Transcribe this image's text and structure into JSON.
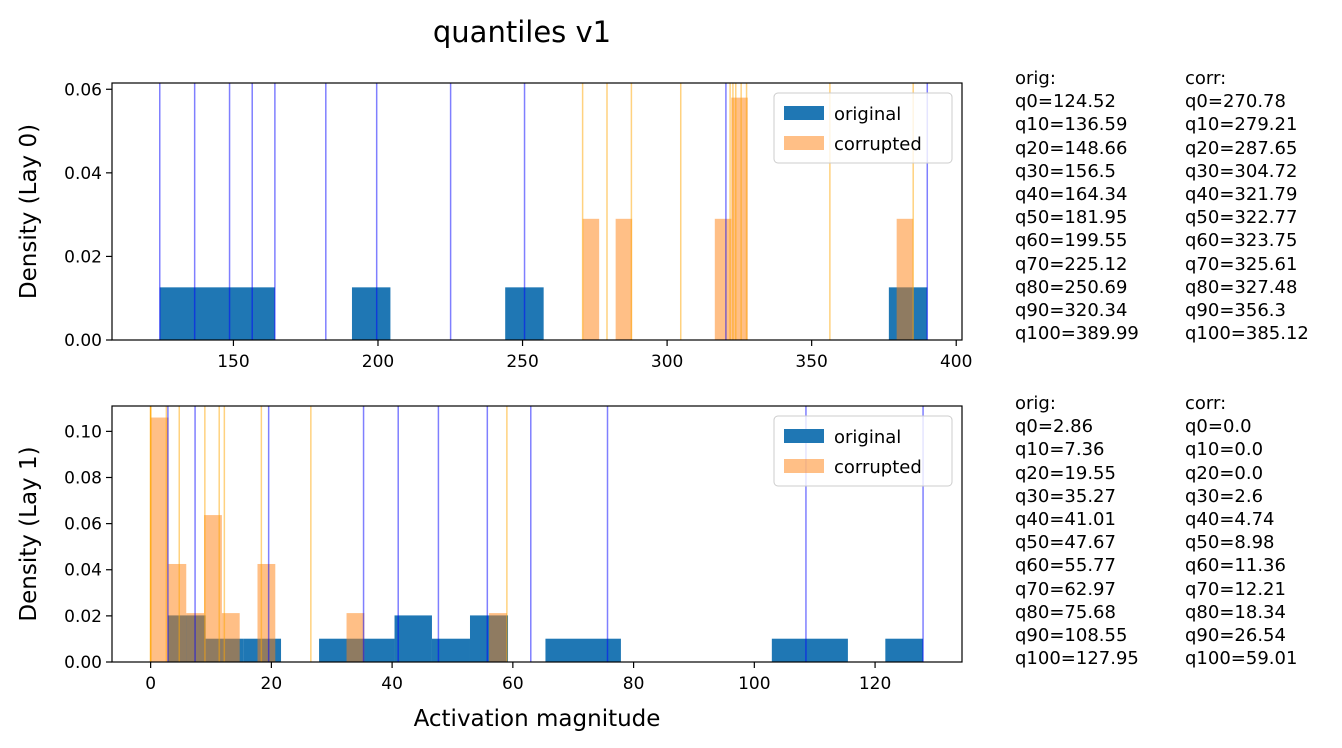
{
  "title": "quantiles v1",
  "chart_data": [
    {
      "type": "histogram",
      "ylabel": "Density (Lay 0)",
      "xlabel": "",
      "xlim": [
        108,
        402
      ],
      "ylim": [
        0,
        0.0615
      ],
      "xticks": [
        150,
        200,
        250,
        300,
        350,
        400
      ],
      "yticks": [
        0.0,
        0.02,
        0.04,
        0.06
      ],
      "ytick_decimals": 2,
      "legend": {
        "placement": "top-right",
        "entries": [
          "original",
          "corrupted"
        ]
      },
      "series": [
        {
          "name": "original",
          "color": "#1f77b4",
          "alpha": 1.0,
          "bins": [
            {
              "x0": 124.52,
              "x1": 164.34,
              "value": 0.0126
            },
            {
              "x0": 191.0,
              "x1": 204.3,
              "value": 0.0126
            },
            {
              "x0": 244.0,
              "x1": 257.3,
              "value": 0.0126
            },
            {
              "x0": 376.7,
              "x1": 389.99,
              "value": 0.0126
            }
          ],
          "quantile_lines": [
            124.52,
            136.59,
            148.66,
            156.5,
            164.34,
            181.95,
            199.55,
            225.12,
            250.69,
            320.34,
            389.99
          ]
        },
        {
          "name": "corrupted",
          "color": "#ff7f0e",
          "alpha": 0.5,
          "bins": [
            {
              "x0": 270.78,
              "x1": 276.5,
              "value": 0.029
            },
            {
              "x0": 282.2,
              "x1": 287.9,
              "value": 0.029
            },
            {
              "x0": 316.5,
              "x1": 322.2,
              "value": 0.029
            },
            {
              "x0": 322.2,
              "x1": 327.9,
              "value": 0.058
            },
            {
              "x0": 379.4,
              "x1": 385.12,
              "value": 0.029
            }
          ],
          "quantile_lines": [
            270.78,
            279.21,
            287.65,
            304.72,
            321.79,
            322.77,
            323.75,
            325.61,
            327.48,
            356.3,
            385.12
          ]
        }
      ]
    },
    {
      "type": "histogram",
      "ylabel": "Density (Lay 1)",
      "xlabel": "Activation magnitude",
      "xlim": [
        -6.4,
        134.4
      ],
      "ylim": [
        0,
        0.111
      ],
      "xticks": [
        0,
        20,
        40,
        60,
        80,
        100,
        120
      ],
      "yticks": [
        0.0,
        0.02,
        0.04,
        0.06,
        0.08,
        0.1
      ],
      "ytick_decimals": 2,
      "legend": {
        "placement": "top-right",
        "entries": [
          "original",
          "corrupted"
        ]
      },
      "series": [
        {
          "name": "original",
          "color": "#1f77b4",
          "alpha": 1.0,
          "bins": [
            {
              "x0": 2.86,
              "x1": 9.1,
              "value": 0.0202
            },
            {
              "x0": 9.1,
              "x1": 15.4,
              "value": 0.0101
            },
            {
              "x0": 15.4,
              "x1": 21.6,
              "value": 0.0101
            },
            {
              "x0": 27.9,
              "x1": 40.4,
              "value": 0.0101
            },
            {
              "x0": 40.4,
              "x1": 46.6,
              "value": 0.0202
            },
            {
              "x0": 46.6,
              "x1": 52.9,
              "value": 0.0101
            },
            {
              "x0": 52.9,
              "x1": 59.2,
              "value": 0.0202
            },
            {
              "x0": 65.4,
              "x1": 77.9,
              "value": 0.0101
            },
            {
              "x0": 102.9,
              "x1": 115.5,
              "value": 0.0101
            },
            {
              "x0": 121.7,
              "x1": 127.95,
              "value": 0.0101
            }
          ],
          "quantile_lines": [
            2.86,
            7.36,
            19.55,
            35.27,
            41.01,
            47.67,
            55.77,
            62.97,
            75.68,
            108.55,
            127.95
          ]
        },
        {
          "name": "corrupted",
          "color": "#ff7f0e",
          "alpha": 0.5,
          "bins": [
            {
              "x0": 0.0,
              "x1": 2.95,
              "value": 0.106
            },
            {
              "x0": 2.95,
              "x1": 5.9,
              "value": 0.0425
            },
            {
              "x0": 5.9,
              "x1": 8.85,
              "value": 0.0212
            },
            {
              "x0": 8.85,
              "x1": 11.8,
              "value": 0.0637
            },
            {
              "x0": 11.8,
              "x1": 14.75,
              "value": 0.0212
            },
            {
              "x0": 17.7,
              "x1": 20.65,
              "value": 0.0425
            },
            {
              "x0": 32.45,
              "x1": 35.4,
              "value": 0.0212
            },
            {
              "x0": 56.06,
              "x1": 59.01,
              "value": 0.0212
            }
          ],
          "quantile_lines": [
            0.0,
            0.0,
            0.0,
            2.6,
            4.74,
            8.98,
            11.36,
            12.21,
            18.34,
            26.54,
            59.01
          ]
        }
      ]
    }
  ],
  "quantile_text": [
    {
      "orig": [
        "orig:",
        "q0=124.52",
        "q10=136.59",
        "q20=148.66",
        "q30=156.5",
        "q40=164.34",
        "q50=181.95",
        "q60=199.55",
        "q70=225.12",
        "q80=250.69",
        "q90=320.34",
        "q100=389.99"
      ],
      "corr": [
        "corr:",
        "q0=270.78",
        "q10=279.21",
        "q20=287.65",
        "q30=304.72",
        "q40=321.79",
        "q50=322.77",
        "q60=323.75",
        "q70=325.61",
        "q80=327.48",
        "q90=356.3",
        "q100=385.12"
      ]
    },
    {
      "orig": [
        "orig:",
        "q0=2.86",
        "q10=7.36",
        "q20=19.55",
        "q30=35.27",
        "q40=41.01",
        "q50=47.67",
        "q60=55.77",
        "q70=62.97",
        "q80=75.68",
        "q90=108.55",
        "q100=127.95"
      ],
      "corr": [
        "corr:",
        "q0=0.0",
        "q10=0.0",
        "q20=0.0",
        "q30=2.6",
        "q40=4.74",
        "q50=8.98",
        "q60=11.36",
        "q70=12.21",
        "q80=18.34",
        "q90=26.54",
        "q100=59.01"
      ]
    }
  ]
}
